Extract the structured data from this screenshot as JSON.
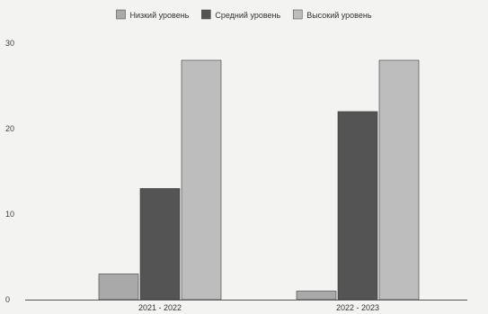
{
  "chart_data": {
    "type": "bar",
    "title": "",
    "xlabel": "",
    "ylabel": "",
    "categories": [
      "2021 - 2022",
      "2022 - 2023"
    ],
    "series": [
      {
        "name": "Низкий уровень",
        "values": [
          3,
          1
        ],
        "color": "#a9a9a9"
      },
      {
        "name": "Средний уровень",
        "values": [
          13,
          22
        ],
        "color": "#545454"
      },
      {
        "name": "Высокий уровень",
        "values": [
          28,
          28
        ],
        "color": "#bdbdbd"
      }
    ],
    "ylim": [
      0,
      30
    ],
    "yticks": [
      0,
      10,
      20,
      30
    ],
    "grid": false,
    "legend": "top-center"
  }
}
